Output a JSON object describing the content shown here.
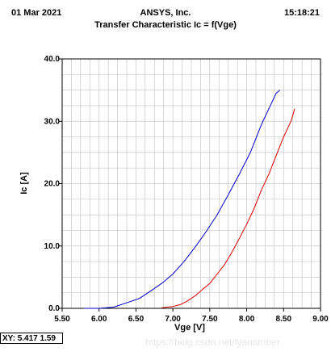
{
  "header": {
    "date": "01 Mar 2021",
    "vendor": "ANSYS, Inc.",
    "time": "15:18:21",
    "title": "Transfer Characteristic Ic = f(Vge)"
  },
  "status": {
    "xy_readout": "XY: 5.417 1.59"
  },
  "watermark": "https://blog.csdn.net/lyanamber",
  "colors": {
    "series1": "#0000cc",
    "series2": "#dd0000",
    "grid": "#c8c8c8"
  },
  "chart_data": {
    "type": "line",
    "xlabel": "Vge [V]",
    "ylabel": "Ic [A]",
    "xlim": [
      5.5,
      9.0
    ],
    "ylim": [
      0.0,
      40.0
    ],
    "x_ticks": [
      "5.50",
      "6.00",
      "6.50",
      "7.00",
      "7.50",
      "8.00",
      "8.50",
      "9.00"
    ],
    "y_ticks": [
      "0.0",
      "10.0",
      "20.0",
      "30.0",
      "40.0"
    ],
    "grid": true,
    "series": [
      {
        "color": "#0000cc",
        "x": [
          5.8,
          6.0,
          6.2,
          6.4,
          6.55,
          6.7,
          6.85,
          7.0,
          7.15,
          7.3,
          7.45,
          7.6,
          7.75,
          7.9,
          8.05,
          8.2,
          8.3,
          8.4,
          8.45
        ],
        "y": [
          0.0,
          0.0,
          0.2,
          1.0,
          1.6,
          2.8,
          4.0,
          5.5,
          7.5,
          9.8,
          12.3,
          15.0,
          18.2,
          21.5,
          25.0,
          29.5,
          32.0,
          34.5,
          35.0
        ]
      },
      {
        "color": "#dd0000",
        "x": [
          6.85,
          7.0,
          7.1,
          7.2,
          7.3,
          7.4,
          7.5,
          7.6,
          7.7,
          7.8,
          7.9,
          8.0,
          8.1,
          8.2,
          8.3,
          8.4,
          8.5,
          8.6,
          8.65
        ],
        "y": [
          0.1,
          0.3,
          0.6,
          1.2,
          2.0,
          3.0,
          4.0,
          5.5,
          7.0,
          9.0,
          11.2,
          13.5,
          16.0,
          19.0,
          21.5,
          24.5,
          27.5,
          30.0,
          32.0
        ]
      }
    ]
  }
}
